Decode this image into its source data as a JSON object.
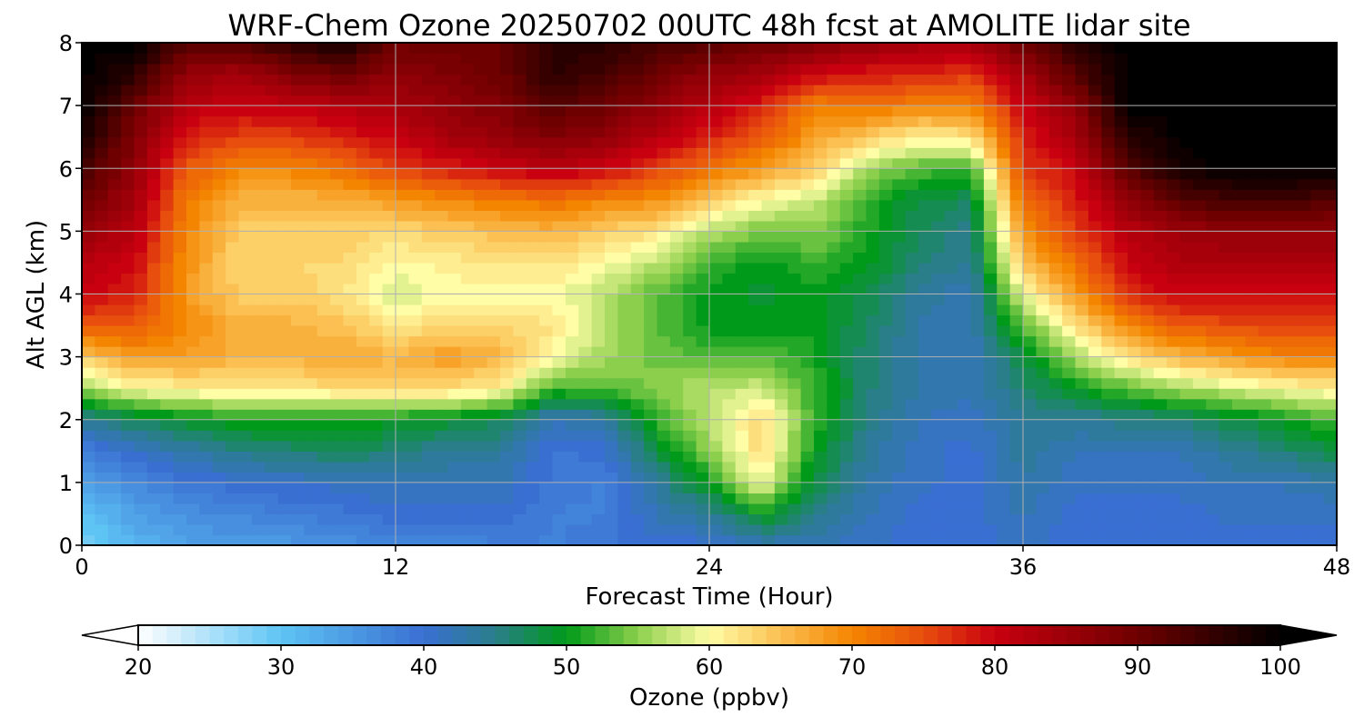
{
  "chart_data": {
    "type": "heatmap",
    "title": "WRF-Chem Ozone  20250702 00UTC 48h fcst at AMOLITE lidar site",
    "xlabel": "Forecast Time (Hour)",
    "ylabel": "Alt AGL (km)",
    "xlim": [
      0,
      48
    ],
    "ylim": [
      0,
      8
    ],
    "xticks": [
      "0",
      "12",
      "24",
      "36",
      "48"
    ],
    "yticks": [
      "0",
      "1",
      "2",
      "3",
      "4",
      "5",
      "6",
      "7",
      "8"
    ],
    "grid": true,
    "x_hours": [
      0,
      2,
      4,
      6,
      8,
      10,
      12,
      14,
      16,
      18,
      20,
      22,
      24,
      26,
      28,
      30,
      32,
      34,
      36,
      38,
      40,
      42,
      44,
      46,
      48
    ],
    "y_km": [
      0,
      0.5,
      1,
      1.5,
      2,
      2.5,
      3,
      3.5,
      4,
      4.5,
      5,
      5.5,
      6,
      6.5,
      7,
      7.5,
      8
    ],
    "ozone_ppbv": [
      [
        28,
        32,
        34,
        35,
        35,
        36,
        37,
        37,
        38,
        38,
        39,
        40,
        40,
        42,
        42,
        41,
        40,
        40,
        41,
        40,
        40,
        40,
        40,
        40,
        40
      ],
      [
        30,
        34,
        36,
        37,
        38,
        39,
        40,
        40,
        40,
        38,
        38,
        42,
        44,
        50,
        45,
        42,
        40,
        40,
        42,
        40,
        40,
        40,
        41,
        41,
        41
      ],
      [
        34,
        37,
        39,
        40,
        41,
        41,
        42,
        42,
        42,
        39,
        38,
        44,
        50,
        60,
        48,
        43,
        41,
        40,
        43,
        41,
        41,
        41,
        42,
        42,
        43
      ],
      [
        38,
        41,
        43,
        45,
        46,
        47,
        46,
        44,
        44,
        39,
        40,
        48,
        55,
        63,
        50,
        44,
        41,
        40,
        44,
        42,
        42,
        42,
        44,
        46,
        48
      ],
      [
        44,
        47,
        49,
        51,
        51,
        50,
        50,
        49,
        47,
        42,
        43,
        52,
        57,
        63,
        52,
        45,
        42,
        41,
        44,
        44,
        45,
        46,
        48,
        50,
        53
      ],
      [
        55,
        60,
        61,
        62,
        62,
        63,
        63,
        63,
        61,
        52,
        53,
        55,
        57,
        58,
        52,
        46,
        43,
        42,
        46,
        50,
        53,
        56,
        58,
        60,
        61
      ],
      [
        64,
        68,
        68,
        66,
        66,
        67,
        66,
        68,
        66,
        60,
        56,
        54,
        53,
        53,
        51,
        46,
        43,
        42,
        48,
        56,
        62,
        66,
        68,
        70,
        70
      ],
      [
        74,
        74,
        70,
        66,
        66,
        65,
        62,
        63,
        63,
        62,
        57,
        53,
        50,
        50,
        50,
        47,
        43,
        42,
        53,
        62,
        70,
        74,
        75,
        76,
        76
      ],
      [
        80,
        78,
        68,
        64,
        64,
        62,
        58,
        60,
        60,
        60,
        57,
        53,
        50,
        49,
        50,
        48,
        44,
        42,
        59,
        68,
        77,
        80,
        80,
        80,
        80
      ],
      [
        82,
        80,
        69,
        63,
        63,
        63,
        60,
        61,
        62,
        62,
        60,
        57,
        52,
        50,
        52,
        50,
        46,
        44,
        65,
        72,
        80,
        83,
        83,
        83,
        83
      ],
      [
        86,
        82,
        70,
        64,
        64,
        64,
        63,
        64,
        65,
        66,
        64,
        62,
        57,
        54,
        55,
        51,
        47,
        45,
        69,
        76,
        82,
        85,
        86,
        86,
        86
      ],
      [
        90,
        84,
        71,
        66,
        66,
        66,
        68,
        70,
        71,
        72,
        70,
        69,
        64,
        60,
        58,
        52,
        48,
        47,
        72,
        78,
        86,
        92,
        94,
        94,
        92
      ],
      [
        94,
        86,
        74,
        70,
        70,
        72,
        76,
        78,
        80,
        82,
        80,
        76,
        72,
        68,
        64,
        56,
        53,
        52,
        76,
        80,
        92,
        98,
        100,
        100,
        100
      ],
      [
        98,
        88,
        78,
        76,
        76,
        78,
        80,
        84,
        86,
        88,
        86,
        82,
        78,
        74,
        68,
        64,
        61,
        62,
        78,
        84,
        96,
        100,
        100,
        100,
        100
      ],
      [
        100,
        90,
        82,
        80,
        81,
        82,
        84,
        86,
        88,
        92,
        90,
        86,
        82,
        78,
        70,
        72,
        70,
        70,
        80,
        86,
        100,
        100,
        100,
        100,
        100
      ],
      [
        100,
        96,
        86,
        84,
        88,
        90,
        86,
        88,
        90,
        96,
        94,
        90,
        86,
        84,
        80,
        78,
        78,
        76,
        84,
        92,
        100,
        100,
        100,
        100,
        100
      ],
      [
        100,
        100,
        92,
        92,
        96,
        98,
        90,
        90,
        90,
        96,
        96,
        94,
        92,
        90,
        88,
        86,
        84,
        84,
        90,
        96,
        100,
        100,
        100,
        100,
        100
      ]
    ]
  },
  "colorbar": {
    "label": "Ozone  (ppbv)",
    "ticks": [
      "20",
      "30",
      "40",
      "50",
      "60",
      "70",
      "80",
      "90",
      "100"
    ],
    "min": 20,
    "max": 100,
    "stops": [
      {
        "v": 20,
        "c": "#ffffff"
      },
      {
        "v": 30,
        "c": "#5ec4f4"
      },
      {
        "v": 40,
        "c": "#3a6fd2"
      },
      {
        "v": 45,
        "c": "#2a7e8a"
      },
      {
        "v": 50,
        "c": "#009a1a"
      },
      {
        "v": 55,
        "c": "#8ccf4c"
      },
      {
        "v": 60,
        "c": "#fffda6"
      },
      {
        "v": 65,
        "c": "#fbbf52"
      },
      {
        "v": 70,
        "c": "#f48500"
      },
      {
        "v": 75,
        "c": "#e84e0e"
      },
      {
        "v": 80,
        "c": "#c90010"
      },
      {
        "v": 90,
        "c": "#6e0000"
      },
      {
        "v": 100,
        "c": "#000000"
      }
    ]
  }
}
